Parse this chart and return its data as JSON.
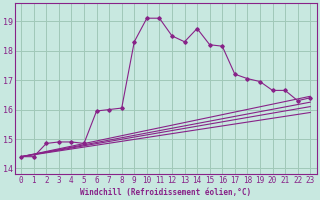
{
  "bg_color": "#c8e8e0",
  "grid_color": "#a0c8b8",
  "line_color": "#882288",
  "xlim": [
    -0.5,
    23.5
  ],
  "ylim": [
    13.8,
    19.6
  ],
  "yticks": [
    14,
    15,
    16,
    17,
    18,
    19
  ],
  "xticks": [
    0,
    1,
    2,
    3,
    4,
    5,
    6,
    7,
    8,
    9,
    10,
    11,
    12,
    13,
    14,
    15,
    16,
    17,
    18,
    19,
    20,
    21,
    22,
    23
  ],
  "xlabel": "Windchill (Refroidissement éolien,°C)",
  "series_main": {
    "x": [
      0,
      1,
      2,
      3,
      4,
      5,
      6,
      7,
      8,
      9,
      10,
      11,
      12,
      13,
      14,
      15,
      16,
      17,
      18,
      19,
      20,
      21,
      22,
      23
    ],
    "y": [
      14.4,
      14.4,
      14.85,
      14.9,
      14.9,
      14.85,
      15.95,
      16.0,
      16.05,
      18.3,
      19.1,
      19.1,
      18.5,
      18.3,
      18.75,
      18.2,
      18.15,
      17.2,
      17.05,
      16.95,
      16.65,
      16.65,
      16.3,
      16.4
    ]
  },
  "series_lines": [
    {
      "x": [
        0,
        23
      ],
      "y": [
        14.4,
        16.45
      ]
    },
    {
      "x": [
        0,
        23
      ],
      "y": [
        14.4,
        16.25
      ]
    },
    {
      "x": [
        0,
        23
      ],
      "y": [
        14.4,
        16.1
      ]
    },
    {
      "x": [
        0,
        23
      ],
      "y": [
        14.4,
        15.9
      ]
    }
  ]
}
